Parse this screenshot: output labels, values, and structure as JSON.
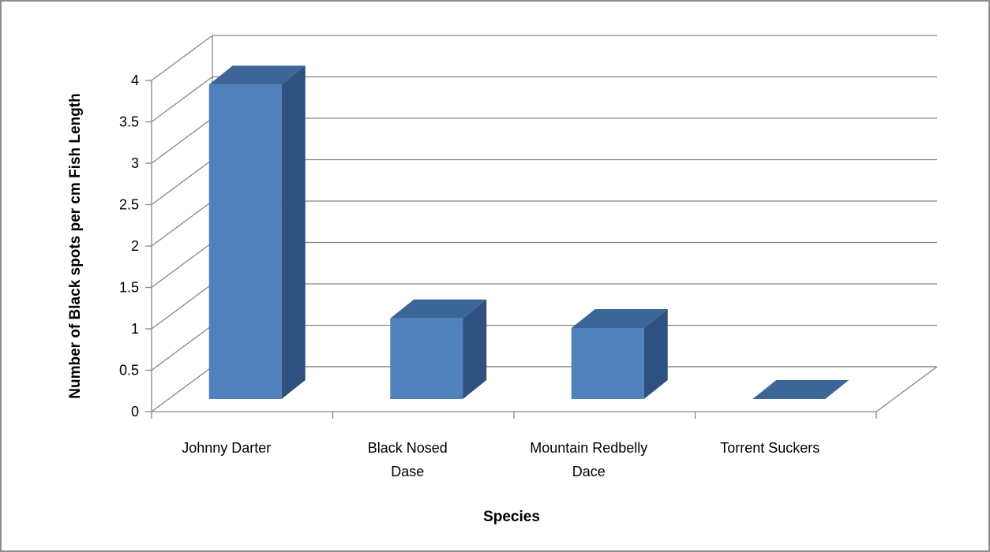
{
  "chart_data": {
    "type": "bar",
    "style": "3d-column",
    "categories": [
      [
        "Johnny Darter"
      ],
      [
        "Black Nosed",
        "Dase"
      ],
      [
        "Mountain Redbelly",
        "Dace"
      ],
      [
        "Torrent Suckers"
      ]
    ],
    "values": [
      3.9,
      1.0,
      0.88,
      0.0
    ],
    "ylim": [
      0,
      4
    ],
    "yticks": [
      "0",
      "0.5",
      "1",
      "1.5",
      "2",
      "2.5",
      "3",
      "3.5",
      "4"
    ],
    "xlabel": "Species",
    "ylabel": "Number of Black spots per cm Fish Length",
    "grid": true,
    "legend": "none",
    "colors": {
      "bar_front": "#4f81bd",
      "bar_top": "#3d6698",
      "bar_side": "#2f5180",
      "grid": "#868686",
      "axis": "#868686"
    }
  }
}
